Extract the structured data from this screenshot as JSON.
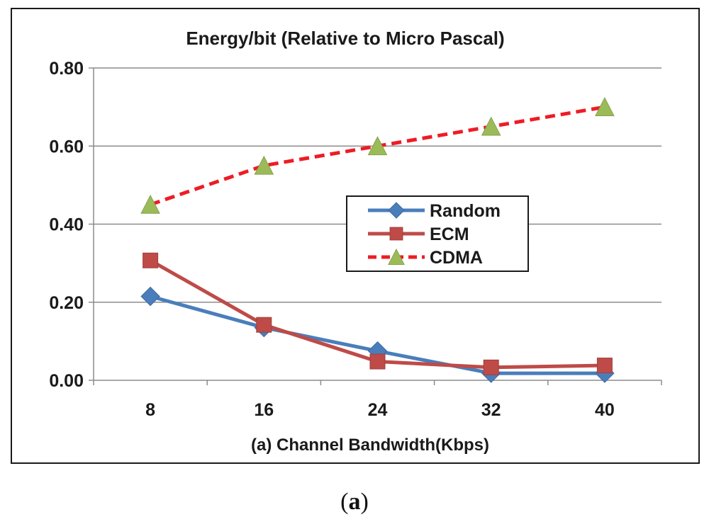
{
  "chart_data": {
    "type": "line",
    "title": "Energy/bit (Relative to Micro Pascal)",
    "xlabel": "(a) Channel Bandwidth(Kbps)",
    "ylabel": "",
    "categories": [
      "8",
      "16",
      "24",
      "32",
      "40"
    ],
    "ylim": [
      0,
      0.8
    ],
    "yticks": [
      "0.00",
      "0.20",
      "0.40",
      "0.60",
      "0.80"
    ],
    "grid": true,
    "legend_position": "center-right",
    "series": [
      {
        "name": "Random",
        "values": [
          0.215,
          0.135,
          0.075,
          0.018,
          0.018
        ],
        "color": "#4a7ebb",
        "marker": "diamond",
        "marker_color": "#4a7ebb",
        "line_style": "solid"
      },
      {
        "name": "ECM",
        "values": [
          0.307,
          0.142,
          0.048,
          0.033,
          0.038
        ],
        "color": "#be4b48",
        "marker": "square",
        "marker_color": "#be4b48",
        "line_style": "solid"
      },
      {
        "name": "CDMA",
        "values": [
          0.45,
          0.55,
          0.6,
          0.65,
          0.7
        ],
        "color": "#ee1c24",
        "marker": "triangle",
        "marker_color": "#9bbb59",
        "line_style": "dashed"
      }
    ]
  },
  "caption": {
    "prefix": "(",
    "label": "a",
    "suffix": ")"
  }
}
